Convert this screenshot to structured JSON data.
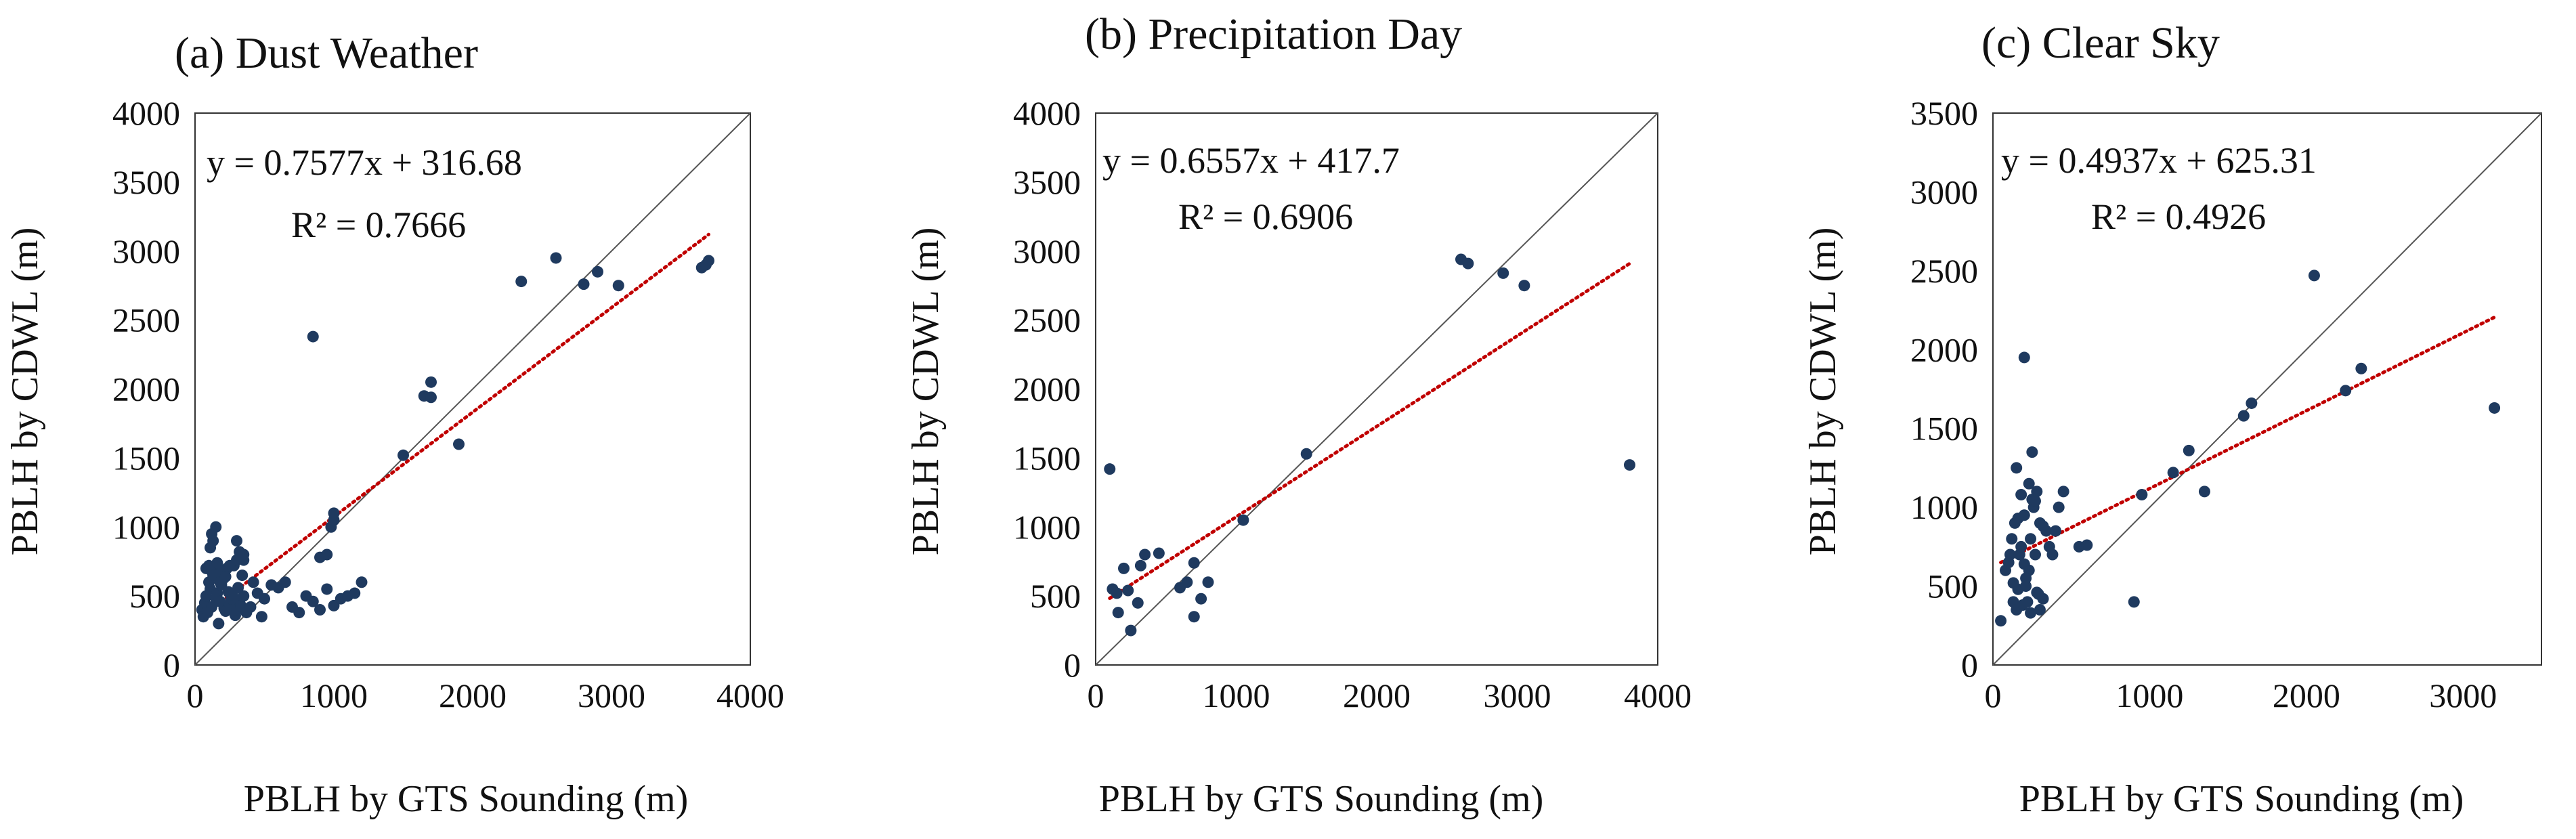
{
  "colors": {
    "point": "#1F3A5F",
    "trend": "#C00000",
    "diagonal": "#555555",
    "frame": "#333333"
  },
  "chart_data": [
    {
      "type": "scatter",
      "title": "(a) Dust Weather",
      "xlabel": "PBLH by GTS Sounding (m)",
      "ylabel": "PBLH by CDWL (m)",
      "xlim": [
        0,
        4000
      ],
      "ylim": [
        0,
        4000
      ],
      "xticks": [
        0,
        1000,
        2000,
        3000,
        4000
      ],
      "yticks": [
        0,
        500,
        1000,
        1500,
        2000,
        2500,
        3000,
        3500,
        4000
      ],
      "grid": false,
      "equation": "y = 0.7577x + 316.68",
      "r2": "R² = 0.7666",
      "trendline": {
        "slope": 0.7577,
        "intercept": 316.68,
        "x_range": [
          50,
          3700
        ]
      },
      "x": [
        50,
        60,
        70,
        80,
        90,
        100,
        110,
        120,
        130,
        140,
        150,
        160,
        170,
        180,
        190,
        200,
        210,
        220,
        230,
        240,
        250,
        260,
        270,
        280,
        290,
        300,
        310,
        320,
        330,
        340,
        350,
        370,
        400,
        420,
        450,
        480,
        500,
        550,
        600,
        650,
        700,
        750,
        800,
        850,
        900,
        950,
        1000,
        1050,
        1100,
        1150,
        1200,
        80,
        100,
        120,
        140,
        160,
        180,
        200,
        220,
        250,
        300,
        350,
        120,
        150,
        130,
        110,
        300,
        320,
        350,
        850,
        900,
        950,
        980,
        1000,
        1000,
        1500,
        1650,
        1700,
        1700,
        1900,
        2350,
        2600,
        2800,
        2900,
        3050,
        3650,
        3700,
        3680
      ],
      "values": [
        400,
        350,
        450,
        500,
        380,
        600,
        550,
        420,
        650,
        700,
        480,
        520,
        300,
        460,
        580,
        620,
        410,
        390,
        700,
        530,
        440,
        480,
        510,
        720,
        360,
        400,
        560,
        470,
        430,
        650,
        500,
        380,
        420,
        600,
        520,
        350,
        480,
        580,
        560,
        600,
        420,
        380,
        500,
        460,
        400,
        550,
        430,
        480,
        500,
        520,
        600,
        700,
        720,
        680,
        650,
        740,
        600,
        680,
        640,
        720,
        760,
        800,
        950,
        1000,
        900,
        850,
        900,
        820,
        760,
        2380,
        780,
        800,
        1000,
        1050,
        1100,
        1520,
        1950,
        2050,
        1940,
        1600,
        2780,
        2950,
        2760,
        2850,
        2750,
        2880,
        2930,
        2900
      ]
    },
    {
      "type": "scatter",
      "title": "(b) Precipitation Day",
      "xlabel": "PBLH by GTS Sounding (m)",
      "ylabel": "PBLH by CDWL (m)",
      "xlim": [
        0,
        4000
      ],
      "ylim": [
        0,
        4000
      ],
      "xticks": [
        0,
        1000,
        2000,
        3000,
        4000
      ],
      "yticks": [
        0,
        500,
        1000,
        1500,
        2000,
        2500,
        3000,
        3500,
        4000
      ],
      "grid": false,
      "equation": "y = 0.6557x + 417.7",
      "r2": "R² = 0.6906",
      "trendline": {
        "slope": 0.6557,
        "intercept": 417.7,
        "x_range": [
          100,
          3800
        ]
      },
      "x": [
        100,
        120,
        150,
        160,
        200,
        230,
        250,
        300,
        320,
        350,
        450,
        600,
        650,
        700,
        700,
        750,
        800,
        1050,
        1500,
        2600,
        2650,
        2900,
        3050,
        3800
      ],
      "values": [
        1420,
        550,
        520,
        380,
        700,
        540,
        250,
        450,
        720,
        800,
        810,
        560,
        600,
        740,
        350,
        480,
        600,
        1050,
        1530,
        2940,
        2910,
        2840,
        2750,
        1450
      ]
    },
    {
      "type": "scatter",
      "title": "(c) Clear Sky",
      "xlabel": "PBLH by GTS Sounding (m)",
      "ylabel": "PBLH by CDWL (m)",
      "xlim": [
        0,
        3500
      ],
      "ylim": [
        0,
        3500
      ],
      "xticks": [
        0,
        1000,
        2000,
        3000
      ],
      "yticks": [
        0,
        500,
        1000,
        1500,
        2000,
        2500,
        3000,
        3500
      ],
      "grid": false,
      "equation": "y = 0.4937x + 625.31",
      "r2": "R² = 0.4926",
      "trendline": {
        "slope": 0.4937,
        "intercept": 625.31,
        "x_range": [
          50,
          3200
        ]
      },
      "x": [
        50,
        80,
        100,
        110,
        120,
        130,
        140,
        150,
        160,
        170,
        180,
        190,
        200,
        210,
        220,
        230,
        240,
        250,
        260,
        270,
        280,
        290,
        300,
        320,
        340,
        360,
        380,
        400,
        420,
        450,
        150,
        180,
        200,
        230,
        250,
        270,
        300,
        320,
        200,
        210,
        240,
        280,
        550,
        600,
        900,
        950,
        1150,
        1250,
        1350,
        1600,
        1650,
        2050,
        2250,
        2350,
        3200,
        130,
        160
      ],
      "values": [
        280,
        600,
        650,
        700,
        800,
        400,
        900,
        350,
        480,
        700,
        750,
        380,
        1950,
        500,
        400,
        600,
        800,
        1350,
        1000,
        700,
        1100,
        450,
        350,
        420,
        850,
        750,
        700,
        850,
        1000,
        1100,
        1250,
        1080,
        950,
        1150,
        1050,
        1040,
        900,
        880,
        640,
        550,
        330,
        460,
        750,
        760,
        400,
        1080,
        1220,
        1360,
        1100,
        1580,
        1660,
        2470,
        1740,
        1880,
        1630,
        520,
        930
      ]
    }
  ]
}
